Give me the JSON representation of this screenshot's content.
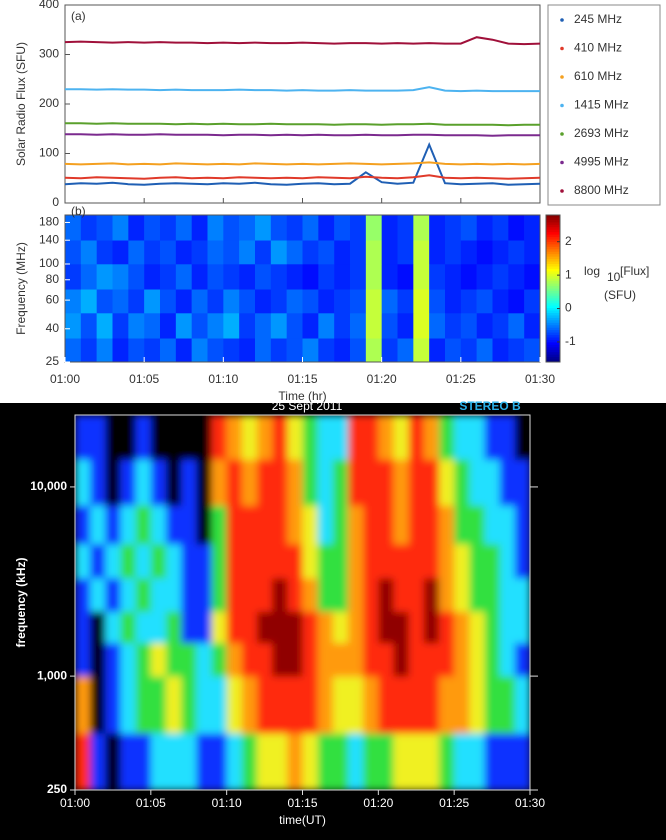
{
  "chart_data": [
    {
      "type": "line",
      "annotation": "(a)",
      "ylabel": "Solar Radio Flux (SFU)",
      "xlim": [
        0,
        30
      ],
      "ylim": [
        0,
        400
      ],
      "yticks": [
        0,
        100,
        200,
        300,
        400
      ],
      "legend": "right",
      "x": [
        0,
        1,
        2,
        3,
        4,
        5,
        6,
        7,
        8,
        9,
        10,
        11,
        12,
        13,
        14,
        15,
        16,
        17,
        18,
        19,
        20,
        21,
        22,
        23,
        24,
        25,
        26,
        27,
        28,
        29,
        30
      ],
      "series": [
        {
          "name": "245 MHz",
          "color": "#1f5fb4",
          "values": [
            38,
            40,
            39,
            41,
            38,
            37,
            39,
            40,
            39,
            38,
            40,
            39,
            41,
            38,
            37,
            39,
            40,
            38,
            39,
            62,
            42,
            39,
            41,
            118,
            40,
            38,
            39,
            40,
            37,
            38,
            39
          ]
        },
        {
          "name": "410 MHz",
          "color": "#e03a2a",
          "values": [
            51,
            50,
            52,
            51,
            50,
            49,
            51,
            52,
            50,
            51,
            50,
            52,
            51,
            50,
            51,
            50,
            52,
            51,
            50,
            53,
            51,
            50,
            52,
            56,
            51,
            50,
            51,
            50,
            49,
            50,
            51
          ]
        },
        {
          "name": "610 MHz",
          "color": "#f4a020",
          "values": [
            79,
            78,
            79,
            80,
            78,
            79,
            78,
            80,
            79,
            78,
            79,
            78,
            80,
            79,
            78,
            79,
            78,
            79,
            80,
            79,
            78,
            79,
            80,
            82,
            79,
            78,
            79,
            78,
            79,
            78,
            79
          ]
        },
        {
          "name": "1415 MHz",
          "color": "#4db3f0",
          "values": [
            230,
            230,
            229,
            230,
            229,
            229,
            228,
            229,
            228,
            228,
            228,
            229,
            228,
            228,
            227,
            228,
            227,
            227,
            228,
            227,
            227,
            227,
            228,
            234,
            227,
            226,
            227,
            226,
            226,
            226,
            226
          ]
        },
        {
          "name": "2693 MHz",
          "color": "#5aa02c",
          "values": [
            161,
            161,
            160,
            161,
            160,
            160,
            160,
            159,
            160,
            159,
            160,
            159,
            159,
            160,
            159,
            159,
            159,
            158,
            159,
            159,
            158,
            159,
            159,
            160,
            158,
            158,
            158,
            158,
            157,
            158,
            158
          ]
        },
        {
          "name": "4995 MHz",
          "color": "#7b2a8e",
          "values": [
            139,
            139,
            138,
            139,
            138,
            138,
            139,
            138,
            138,
            138,
            137,
            138,
            138,
            137,
            138,
            137,
            138,
            137,
            137,
            138,
            137,
            137,
            138,
            138,
            137,
            137,
            137,
            136,
            137,
            137,
            137
          ]
        },
        {
          "name": "8800 MHz",
          "color": "#a0103a",
          "values": [
            325,
            326,
            325,
            324,
            325,
            324,
            325,
            324,
            324,
            323,
            324,
            323,
            324,
            323,
            323,
            324,
            323,
            322,
            323,
            323,
            322,
            323,
            322,
            323,
            322,
            322,
            335,
            330,
            322,
            321,
            322
          ]
        }
      ]
    },
    {
      "type": "heatmap",
      "annotation": "(b)",
      "ylabel": "Frequency (MHz)",
      "xlabel": "Time (hr)",
      "xlim": [
        0,
        30
      ],
      "xticks": [
        {
          "value": 0,
          "label": "01:00"
        },
        {
          "value": 5,
          "label": "01:05"
        },
        {
          "value": 10,
          "label": "01:10"
        },
        {
          "value": 15,
          "label": "01:15"
        },
        {
          "value": 20,
          "label": "01:20"
        },
        {
          "value": 25,
          "label": "01:25"
        },
        {
          "value": 30,
          "label": "01:30"
        }
      ],
      "ylim": [
        25,
        200
      ],
      "log_y": true,
      "yticks": [
        25,
        40,
        60,
        80,
        100,
        140,
        180
      ],
      "x_bins": [
        0,
        1,
        2,
        3,
        4,
        5,
        6,
        7,
        8,
        9,
        10,
        11,
        12,
        13,
        14,
        15,
        16,
        17,
        18,
        19,
        20,
        21,
        22,
        23,
        24,
        25,
        26,
        27,
        28,
        29,
        30
      ],
      "y_bins": [
        25,
        35,
        50,
        70,
        100,
        140,
        200
      ],
      "colormap": "jet",
      "clim": [
        -1.6,
        2.8
      ],
      "colorbar_ticks": [
        -1,
        0,
        1,
        2
      ],
      "colorbar_label": "log",
      "colorbar_label_sub": "10",
      "colorbar_label_rest": "[Flux]",
      "colorbar_unit": "(SFU)",
      "z": [
        [
          -0.6,
          -0.8,
          -0.5,
          -0.9,
          -0.7,
          -0.8,
          -0.6,
          -0.9,
          -0.5,
          -0.7,
          -0.8,
          -0.9,
          -0.6,
          -0.8,
          -0.7,
          -0.5,
          -0.8,
          -0.9,
          -0.7,
          0.8,
          -0.8,
          -0.6,
          0.9,
          -0.9,
          -0.7,
          -0.8,
          -0.6,
          -0.9,
          -0.8,
          -0.7
        ],
        [
          -0.4,
          -0.7,
          -0.3,
          -0.8,
          -0.5,
          -0.6,
          -0.9,
          -0.4,
          -0.7,
          -0.5,
          -0.3,
          -0.8,
          -0.6,
          -0.4,
          -0.7,
          -0.9,
          -0.5,
          -0.8,
          -0.6,
          0.9,
          -0.7,
          -0.9,
          1.0,
          -0.6,
          -0.8,
          -0.7,
          -0.9,
          -0.8,
          -0.6,
          -0.9
        ],
        [
          -0.5,
          -0.3,
          -0.7,
          -0.6,
          -0.8,
          -0.4,
          -0.7,
          -0.9,
          -0.6,
          -0.8,
          -0.5,
          -0.7,
          -0.9,
          -0.8,
          -0.6,
          -0.7,
          -0.9,
          -0.8,
          -0.7,
          0.9,
          -0.6,
          -0.8,
          1.0,
          -0.7,
          -0.9,
          -0.8,
          -0.7,
          -0.9,
          -1.0,
          -0.8
        ],
        [
          -0.8,
          -0.6,
          -0.4,
          -0.5,
          -0.7,
          -0.9,
          -0.8,
          -0.6,
          -0.9,
          -0.7,
          -0.8,
          -0.9,
          -0.7,
          -0.8,
          -0.9,
          -1.0,
          -0.8,
          -0.9,
          -0.8,
          0.8,
          -0.9,
          -1.0,
          0.9,
          -0.8,
          -0.9,
          -1.0,
          -0.9,
          -0.8,
          -0.9,
          -1.0
        ],
        [
          -0.7,
          -0.5,
          -0.8,
          -0.9,
          -0.6,
          -0.8,
          -0.7,
          -0.9,
          -0.8,
          -0.6,
          -0.7,
          -0.5,
          -0.8,
          -0.4,
          -0.6,
          -0.8,
          -0.7,
          -0.9,
          -0.8,
          0.8,
          -0.9,
          -0.8,
          0.9,
          -0.9,
          -0.8,
          -0.9,
          -1.0,
          -0.9,
          -0.8,
          -0.9
        ],
        [
          -0.6,
          -0.8,
          -0.7,
          -0.5,
          -0.9,
          -0.7,
          -0.8,
          -0.6,
          -0.9,
          -0.5,
          -0.7,
          -0.6,
          -0.4,
          -0.7,
          -0.8,
          -0.6,
          -0.9,
          -0.7,
          -0.8,
          0.7,
          -0.9,
          -0.8,
          0.8,
          -0.9,
          -0.8,
          -0.7,
          -0.9,
          -0.8,
          -1.0,
          -0.9
        ]
      ]
    },
    {
      "type": "heatmap",
      "title": "25 Sept 2011",
      "subtitle": "STEREO B",
      "ylabel": "frequency (kHz)",
      "xlabel": "time(UT)",
      "background": "#000000",
      "xlim": [
        0,
        30
      ],
      "xticks": [
        {
          "value": 0,
          "label": "01:00"
        },
        {
          "value": 5,
          "label": "01:05"
        },
        {
          "value": 10,
          "label": "01:10"
        },
        {
          "value": 15,
          "label": "01:15"
        },
        {
          "value": 20,
          "label": "01:20"
        },
        {
          "value": 25,
          "label": "01:25"
        },
        {
          "value": 30,
          "label": "01:30"
        }
      ],
      "ylim": [
        250,
        24000
      ],
      "log_y": true,
      "yticks": [
        250,
        {
          "value": 1000,
          "label": "1,000"
        },
        {
          "value": 10000,
          "label": "10,000"
        }
      ],
      "x_bins": [
        0,
        1,
        2,
        3,
        4,
        5,
        6,
        7,
        8,
        9,
        10,
        11,
        12,
        13,
        14,
        15,
        16,
        17,
        18,
        19,
        20,
        21,
        22,
        23,
        24,
        25,
        26,
        27,
        28,
        29,
        30
      ],
      "y_bins": [
        250,
        500,
        1000,
        1500,
        2200,
        3300,
        5000,
        8000,
        14000,
        24000
      ],
      "colors": [
        "#000000",
        "#1030ff",
        "#20e0ff",
        "#30e040",
        "#f0f020",
        "#ff9a10",
        "#ff2a10",
        "#900000"
      ],
      "clim": [
        0,
        7
      ],
      "z": [
        [
          6,
          1,
          0,
          1,
          1,
          2,
          2,
          2,
          1,
          1,
          2,
          3,
          4,
          4,
          5,
          4,
          3,
          3,
          2,
          3,
          3,
          4,
          4,
          4,
          3,
          2,
          2,
          1,
          1,
          1
        ],
        [
          5,
          0,
          1,
          2,
          3,
          3,
          4,
          3,
          2,
          2,
          4,
          5,
          6,
          6,
          6,
          6,
          5,
          4,
          4,
          5,
          6,
          6,
          6,
          6,
          5,
          5,
          4,
          3,
          3,
          2
        ],
        [
          1,
          0,
          1,
          2,
          3,
          4,
          3,
          3,
          2,
          3,
          5,
          6,
          6,
          7,
          7,
          6,
          5,
          5,
          5,
          6,
          6,
          7,
          6,
          6,
          6,
          5,
          4,
          3,
          2,
          1
        ],
        [
          1,
          0,
          2,
          3,
          2,
          2,
          3,
          1,
          1,
          4,
          6,
          6,
          7,
          7,
          7,
          6,
          5,
          4,
          5,
          6,
          7,
          7,
          6,
          7,
          6,
          5,
          4,
          3,
          2,
          2
        ],
        [
          1,
          2,
          1,
          2,
          3,
          2,
          2,
          1,
          1,
          3,
          6,
          6,
          6,
          7,
          6,
          5,
          3,
          3,
          5,
          6,
          7,
          6,
          6,
          7,
          5,
          4,
          3,
          3,
          2,
          2
        ],
        [
          2,
          1,
          2,
          3,
          2,
          3,
          2,
          1,
          1,
          3,
          6,
          6,
          6,
          6,
          6,
          4,
          3,
          3,
          5,
          6,
          6,
          6,
          6,
          6,
          5,
          4,
          3,
          3,
          2,
          1
        ],
        [
          1,
          2,
          1,
          2,
          3,
          2,
          1,
          1,
          0,
          3,
          6,
          6,
          6,
          6,
          5,
          4,
          2,
          3,
          5,
          6,
          6,
          5,
          6,
          6,
          5,
          3,
          3,
          2,
          2,
          1
        ],
        [
          2,
          1,
          0,
          1,
          2,
          1,
          0,
          1,
          0,
          5,
          6,
          5,
          6,
          6,
          5,
          3,
          2,
          3,
          6,
          6,
          6,
          5,
          6,
          6,
          4,
          3,
          2,
          2,
          1,
          1
        ],
        [
          1,
          1,
          0,
          0,
          1,
          0,
          0,
          0,
          0,
          6,
          5,
          4,
          5,
          6,
          4,
          3,
          2,
          2,
          6,
          6,
          5,
          4,
          6,
          5,
          3,
          2,
          2,
          1,
          1,
          0
        ]
      ]
    }
  ]
}
